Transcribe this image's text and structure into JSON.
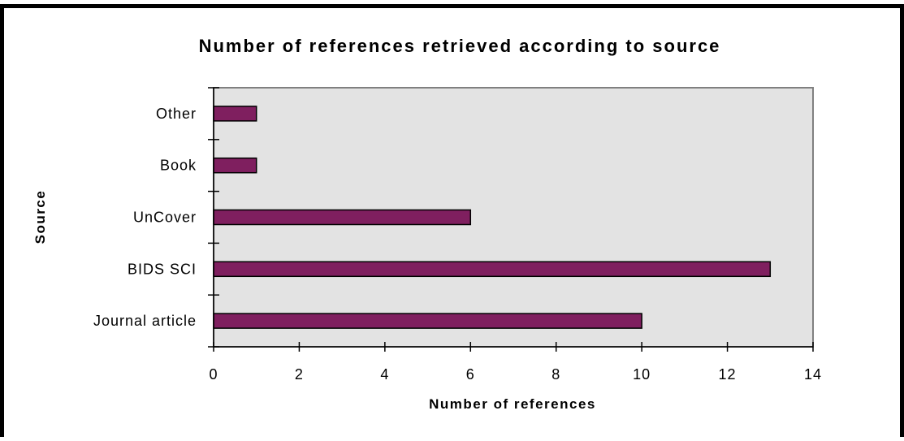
{
  "chart_data": {
    "type": "bar",
    "orientation": "horizontal",
    "title": "Number of references retrieved according to source",
    "xlabel": "Number of references",
    "ylabel": "Source",
    "categories": [
      "Journal article",
      "BIDS SCI",
      "UnCover",
      "Book",
      "Other"
    ],
    "values": [
      10,
      13,
      6,
      1,
      1
    ],
    "xlim": [
      0,
      14
    ],
    "xticks": [
      0,
      2,
      4,
      6,
      8,
      10,
      12,
      14
    ],
    "grid": false,
    "legend": "none",
    "colors": {
      "bar_fill": "#7f1f5f",
      "bar_stroke": "#000000",
      "plot_background": "#e3e3e3",
      "plot_border": "#808080",
      "frame_border": "#000000"
    }
  }
}
